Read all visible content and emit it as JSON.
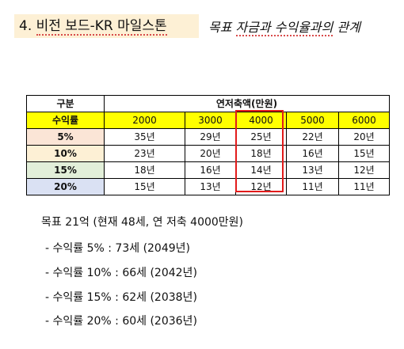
{
  "title": {
    "prefix": "4. ",
    "squiggle_text": "비전 보드-KR 마일스톤",
    "subtitle_prefix": "목표 ",
    "subtitle_squiggle": "자금과 수익율과의",
    "subtitle_suffix": " 관계"
  },
  "table": {
    "corner_label": "구분",
    "group_label": "연저축액(만원)",
    "rate_label": "수익률",
    "amounts": [
      "2000",
      "3000",
      "4000",
      "5000",
      "6000"
    ],
    "rows": [
      {
        "rate": "5%",
        "cells": [
          "35년",
          "29년",
          "25년",
          "22년",
          "20년"
        ]
      },
      {
        "rate": "10%",
        "cells": [
          "23년",
          "20년",
          "18년",
          "16년",
          "15년"
        ]
      },
      {
        "rate": "15%",
        "cells": [
          "18년",
          "16년",
          "14년",
          "13년",
          "12년"
        ]
      },
      {
        "rate": "20%",
        "cells": [
          "15년",
          "13년",
          "12년",
          "11년",
          "11년"
        ]
      }
    ]
  },
  "summary": {
    "heading": "목표 21억 (현재 48세, 연 저축 4000만원)",
    "lines": [
      "- 수익률 5% : 73세 (2049년)",
      "- 수익률 10% : 66세 (2042년)",
      "- 수익률 15% : 62세 (2038년)",
      "- 수익률 20% : 60세 (2036년)"
    ]
  },
  "colors": {
    "title_bg": "#fdf0d5",
    "header_yellow": "#ffff00",
    "highlight_red": "#e21b1b",
    "row_5": "#fbe5d6",
    "row_10": "#fdf0d5",
    "row_15": "#e2efd9",
    "row_20": "#dae1f3"
  }
}
